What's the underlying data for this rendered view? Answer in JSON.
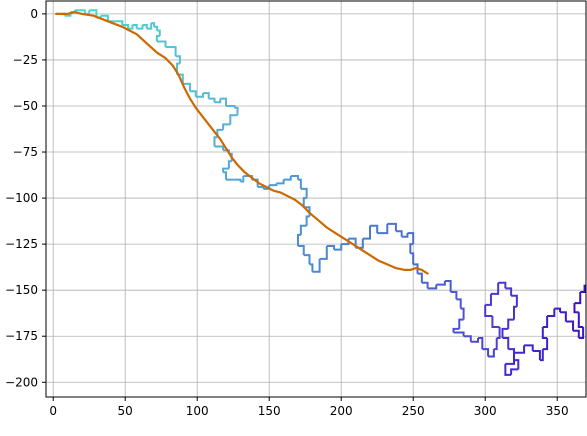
{
  "chart_data": {
    "type": "line",
    "title": "",
    "xlabel": "",
    "ylabel": "",
    "xlim": [
      -5,
      370
    ],
    "ylim": [
      -208,
      7
    ],
    "grid": true,
    "x_ticks": [
      0,
      50,
      100,
      150,
      200,
      250,
      300,
      350
    ],
    "x_tick_labels": [
      "0",
      "50",
      "100",
      "150",
      "200",
      "250",
      "300",
      "350"
    ],
    "y_ticks": [
      0,
      -25,
      -50,
      -75,
      -100,
      -125,
      -150,
      -175,
      -200
    ],
    "y_tick_labels": [
      "0",
      "−25",
      "−50",
      "−75",
      "−100",
      "−125",
      "−150",
      "−175",
      "−200"
    ],
    "series": [
      {
        "style": "random-walk",
        "color_gradient": [
          "#40e0d0",
          "#5ab4d6",
          "#4a8ad0",
          "#4b3fd0",
          "#3a0fcc"
        ],
        "points": [
          [
            2,
            0
          ],
          [
            8,
            -1
          ],
          [
            12,
            1
          ],
          [
            15,
            2
          ],
          [
            18,
            2
          ],
          [
            22,
            0
          ],
          [
            25,
            2
          ],
          [
            30,
            -2
          ],
          [
            33,
            -1
          ],
          [
            38,
            -4
          ],
          [
            43,
            -4
          ],
          [
            48,
            -6
          ],
          [
            52,
            -8
          ],
          [
            55,
            -6
          ],
          [
            58,
            -8
          ],
          [
            62,
            -6
          ],
          [
            65,
            -8
          ],
          [
            68,
            -5
          ],
          [
            70,
            -7
          ],
          [
            72,
            -9
          ],
          [
            74,
            -12
          ],
          [
            72,
            -15
          ],
          [
            78,
            -18
          ],
          [
            85,
            -23
          ],
          [
            88,
            -27
          ],
          [
            86,
            -33
          ],
          [
            90,
            -38
          ],
          [
            95,
            -42
          ],
          [
            99,
            -45
          ],
          [
            104,
            -43
          ],
          [
            108,
            -46
          ],
          [
            112,
            -48
          ],
          [
            116,
            -46
          ],
          [
            120,
            -50
          ],
          [
            126,
            -51
          ],
          [
            128,
            -55
          ],
          [
            123,
            -60
          ],
          [
            118,
            -63
          ],
          [
            114,
            -67
          ],
          [
            112,
            -72
          ],
          [
            118,
            -74
          ],
          [
            122,
            -76
          ],
          [
            124,
            -80
          ],
          [
            122,
            -84
          ],
          [
            118,
            -86
          ],
          [
            120,
            -90
          ],
          [
            126,
            -90
          ],
          [
            130,
            -91
          ],
          [
            132,
            -88
          ],
          [
            138,
            -90
          ],
          [
            142,
            -94
          ],
          [
            146,
            -95
          ],
          [
            150,
            -93
          ],
          [
            155,
            -92
          ],
          [
            160,
            -90
          ],
          [
            165,
            -88
          ],
          [
            170,
            -90
          ],
          [
            172,
            -95
          ],
          [
            176,
            -100
          ],
          [
            174,
            -105
          ],
          [
            178,
            -110
          ],
          [
            176,
            -115
          ],
          [
            172,
            -120
          ],
          [
            170,
            -126
          ],
          [
            174,
            -131
          ],
          [
            178,
            -136
          ],
          [
            180,
            -140
          ],
          [
            185,
            -133
          ],
          [
            190,
            -126
          ],
          [
            195,
            -128
          ],
          [
            200,
            -125
          ],
          [
            205,
            -122
          ],
          [
            210,
            -127
          ],
          [
            215,
            -122
          ],
          [
            220,
            -115
          ],
          [
            225,
            -119
          ],
          [
            232,
            -114
          ],
          [
            238,
            -118
          ],
          [
            242,
            -121
          ],
          [
            246,
            -119
          ],
          [
            250,
            -125
          ],
          [
            248,
            -130
          ],
          [
            250,
            -136
          ],
          [
            253,
            -141
          ],
          [
            256,
            -146
          ],
          [
            260,
            -149
          ],
          [
            266,
            -147
          ],
          [
            272,
            -145
          ],
          [
            276,
            -151
          ],
          [
            280,
            -155
          ],
          [
            283,
            -160
          ],
          [
            285,
            -166
          ],
          [
            282,
            -171
          ],
          [
            278,
            -173
          ],
          [
            285,
            -175
          ],
          [
            290,
            -178
          ],
          [
            295,
            -176
          ],
          [
            298,
            -182
          ],
          [
            302,
            -186
          ],
          [
            306,
            -182
          ],
          [
            308,
            -176
          ],
          [
            310,
            -170
          ],
          [
            305,
            -164
          ],
          [
            300,
            -158
          ],
          [
            304,
            -152
          ],
          [
            309,
            -146
          ],
          [
            314,
            -149
          ],
          [
            318,
            -153
          ],
          [
            322,
            -159
          ],
          [
            320,
            -166
          ],
          [
            316,
            -171
          ],
          [
            312,
            -176
          ],
          [
            316,
            -182
          ],
          [
            320,
            -188
          ],
          [
            323,
            -193
          ],
          [
            318,
            -196
          ],
          [
            314,
            -190
          ],
          [
            320,
            -184
          ],
          [
            327,
            -180
          ],
          [
            333,
            -183
          ],
          [
            338,
            -188
          ],
          [
            340,
            -182
          ],
          [
            343,
            -176
          ],
          [
            340,
            -170
          ],
          [
            343,
            -164
          ],
          [
            348,
            -160
          ],
          [
            352,
            -162
          ],
          [
            356,
            -167
          ],
          [
            361,
            -172
          ],
          [
            365,
            -176
          ],
          [
            368,
            -170
          ],
          [
            365,
            -162
          ],
          [
            362,
            -157
          ],
          [
            366,
            -151
          ],
          [
            369,
            -147
          ]
        ]
      },
      {
        "style": "smoothed",
        "color": "#cc6a00",
        "points": [
          [
            2,
            0
          ],
          [
            10,
            0
          ],
          [
            15,
            1
          ],
          [
            20,
            0
          ],
          [
            28,
            -1
          ],
          [
            38,
            -4
          ],
          [
            48,
            -7
          ],
          [
            58,
            -11
          ],
          [
            65,
            -16
          ],
          [
            72,
            -21
          ],
          [
            78,
            -24
          ],
          [
            83,
            -28
          ],
          [
            87,
            -33
          ],
          [
            91,
            -40
          ],
          [
            95,
            -46
          ],
          [
            99,
            -51
          ],
          [
            103,
            -55
          ],
          [
            108,
            -60
          ],
          [
            112,
            -64
          ],
          [
            116,
            -68
          ],
          [
            120,
            -73
          ],
          [
            124,
            -78
          ],
          [
            128,
            -82
          ],
          [
            133,
            -86
          ],
          [
            138,
            -89
          ],
          [
            143,
            -92
          ],
          [
            148,
            -94
          ],
          [
            153,
            -96
          ],
          [
            158,
            -97
          ],
          [
            163,
            -99
          ],
          [
            168,
            -101
          ],
          [
            173,
            -104
          ],
          [
            178,
            -108
          ],
          [
            184,
            -112
          ],
          [
            190,
            -116
          ],
          [
            196,
            -119
          ],
          [
            202,
            -122
          ],
          [
            208,
            -125
          ],
          [
            214,
            -128
          ],
          [
            220,
            -131
          ],
          [
            226,
            -134
          ],
          [
            232,
            -136
          ],
          [
            238,
            -138
          ],
          [
            244,
            -139
          ],
          [
            248,
            -139
          ],
          [
            252,
            -138
          ],
          [
            256,
            -139
          ],
          [
            260,
            -141
          ]
        ]
      }
    ]
  }
}
